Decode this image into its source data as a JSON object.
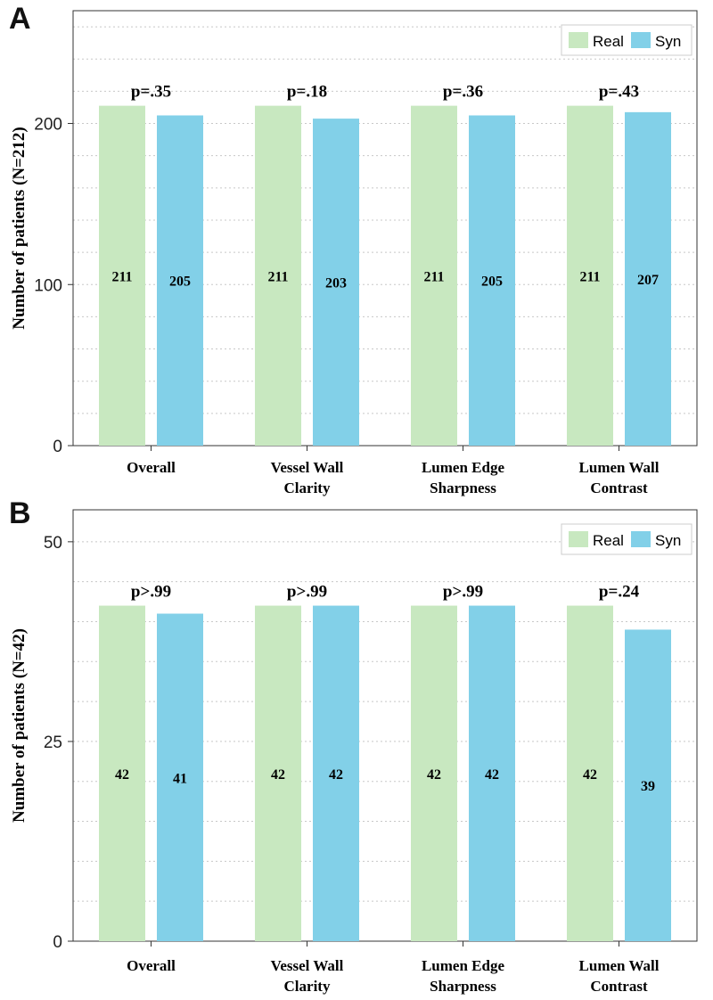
{
  "chart_data": [
    {
      "type": "bar",
      "panel": "A",
      "categories": [
        [
          "Overall"
        ],
        [
          "Vessel Wall",
          "Clarity"
        ],
        [
          "Lumen Edge",
          "Sharpness"
        ],
        [
          "Lumen Wall",
          "Contrast"
        ]
      ],
      "series": [
        {
          "name": "Real",
          "color": "#c8e8c0",
          "values": [
            211,
            211,
            211,
            211
          ]
        },
        {
          "name": "Syn",
          "color": "#82d0e8",
          "values": [
            205,
            203,
            205,
            207
          ]
        }
      ],
      "p_values": [
        "p=.35",
        "p=.18",
        "p=.36",
        "p=.43"
      ],
      "ylabel": "Number of patients (N=212)",
      "ylim": [
        0,
        270
      ],
      "major_ticks": [
        0,
        100,
        200
      ],
      "minor_step": 20,
      "legend_position": "top-right"
    },
    {
      "type": "bar",
      "panel": "B",
      "categories": [
        [
          "Overall"
        ],
        [
          "Vessel Wall",
          "Clarity"
        ],
        [
          "Lumen Edge",
          "Sharpness"
        ],
        [
          "Lumen Wall",
          "Contrast"
        ]
      ],
      "series": [
        {
          "name": "Real",
          "color": "#c8e8c0",
          "values": [
            42,
            42,
            42,
            42
          ]
        },
        {
          "name": "Syn",
          "color": "#82d0e8",
          "values": [
            41,
            42,
            42,
            39
          ]
        }
      ],
      "p_values": [
        "p>.99",
        "p>.99",
        "p>.99",
        "p=.24"
      ],
      "ylabel": "Number of patients (N=42)",
      "ylim": [
        0,
        54
      ],
      "major_ticks": [
        0,
        25,
        50
      ],
      "minor_step": 5,
      "legend_position": "top-right"
    }
  ]
}
